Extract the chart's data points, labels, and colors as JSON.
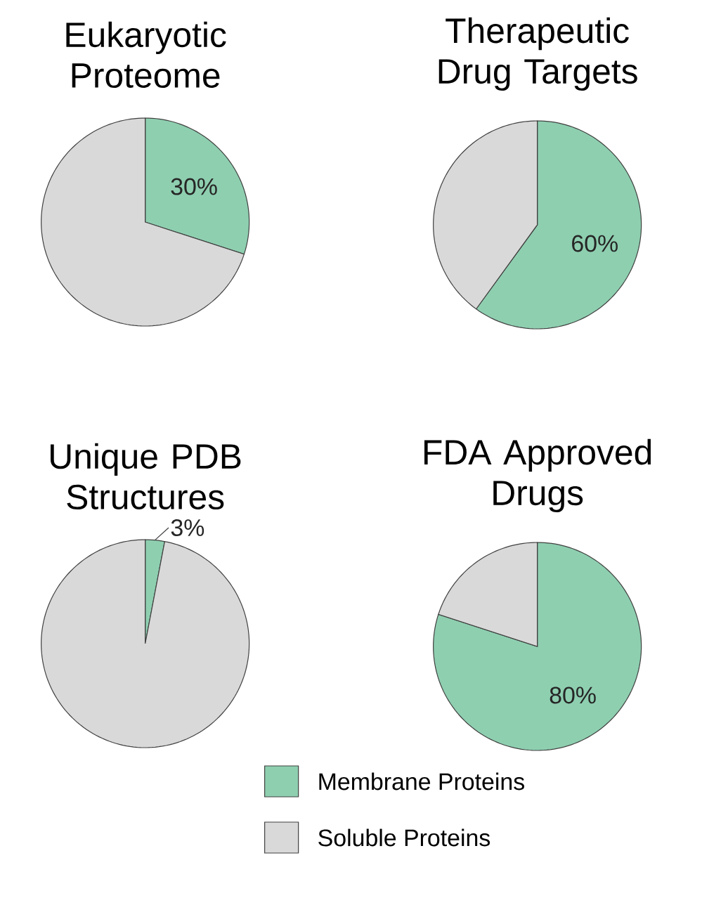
{
  "chart_data": [
    {
      "type": "pie",
      "title": "Eukaryotic Proteome",
      "categories": [
        null,
        null
      ],
      "values": [
        30,
        70
      ],
      "colors": [
        "#8ecfb0",
        "#d9d9d9"
      ],
      "value_labels": [
        "30%",
        null
      ]
    },
    {
      "type": "pie",
      "title": "Therapeutic Drug Targets",
      "categories": [
        null,
        null
      ],
      "values": [
        60,
        40
      ],
      "colors": [
        "#8ecfb0",
        "#d9d9d9"
      ],
      "value_labels": [
        "60%",
        null
      ]
    },
    {
      "type": "pie",
      "title": "Unique PDB Structures",
      "categories": [
        null,
        null
      ],
      "values": [
        3,
        97
      ],
      "colors": [
        "#8ecfb0",
        "#d9d9d9"
      ],
      "value_labels": [
        "3%",
        null
      ]
    },
    {
      "type": "pie",
      "title": "FDA Approved Drugs",
      "categories": [
        "Membrane Proteins",
        "Soluble Proteins"
      ],
      "values": [
        80,
        20
      ],
      "colors": [
        "#8ecfb0",
        "#d9d9d9"
      ],
      "value_labels": [
        "80%",
        null
      ],
      "legend": "bottom"
    }
  ]
}
